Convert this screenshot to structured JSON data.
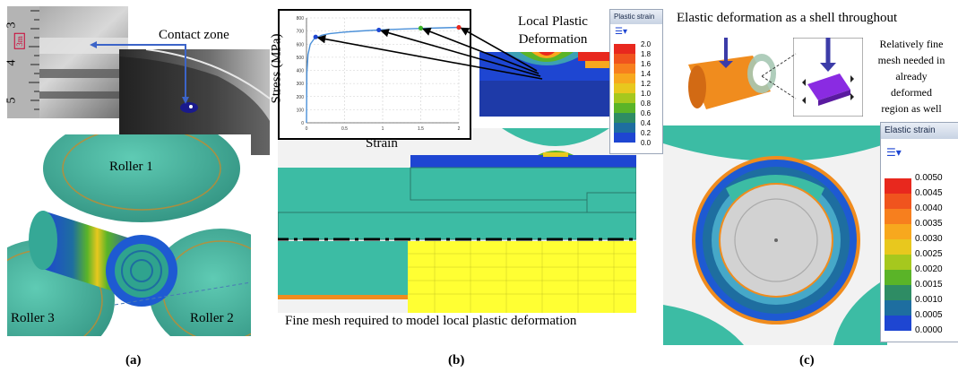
{
  "panel_a": {
    "contact_zone_label": "Contact zone",
    "roller1_label": "Roller 1",
    "roller2_label": "Roller 2",
    "roller3_label": "Roller 3",
    "ruler_marks": [
      "3",
      "4",
      "5"
    ],
    "ruler_badge": "3m",
    "caption": "(a)"
  },
  "panel_b": {
    "local_plastic_title": "Local Plastic Deformation",
    "fine_mesh_caption": "Fine mesh required to model local plastic deformation",
    "caption": "(b)",
    "legend": {
      "title": "Plastic strain",
      "ticks": [
        "2.0",
        "1.8",
        "1.6",
        "1.4",
        "1.2",
        "1.0",
        "0.8",
        "0.6",
        "0.4",
        "0.2",
        "0.0"
      ],
      "colors": [
        "#e8281e",
        "#f0541e",
        "#f77f1e",
        "#f7a81e",
        "#e8c81e",
        "#a6c81e",
        "#5ab428",
        "#2e8c64",
        "#1e6ea0",
        "#1e46d2"
      ]
    }
  },
  "panel_c": {
    "elastic_title": "Elastic deformation as a shell throughout",
    "fine_mesh_note": [
      "Relatively fine",
      "mesh needed in",
      "already",
      "deformed",
      "region as well"
    ],
    "caption": "(c)",
    "legend": {
      "title": "Elastic strain",
      "ticks": [
        "0.0050",
        "0.0045",
        "0.0040",
        "0.0035",
        "0.0030",
        "0.0025",
        "0.0020",
        "0.0015",
        "0.0010",
        "0.0005",
        "0.0000"
      ],
      "colors": [
        "#e8281e",
        "#f0541e",
        "#f77f1e",
        "#f7a81e",
        "#e8c81e",
        "#a6c81e",
        "#5ab428",
        "#2e8c64",
        "#1e6ea0",
        "#1e46d2"
      ]
    }
  },
  "chart_data": {
    "type": "line",
    "xlabel": "Strain",
    "ylabel": "Stress (MPa)",
    "xlim": [
      0,
      2
    ],
    "ylim": [
      0,
      800
    ],
    "xticks": [
      "0",
      "0.5",
      "1",
      "1.5",
      "2"
    ],
    "yticks": [
      "0",
      "100",
      "200",
      "300",
      "400",
      "500",
      "600",
      "700",
      "800"
    ],
    "grid": true,
    "series": [
      {
        "x": [
          0,
          0.005,
          0.02,
          0.05,
          0.1,
          0.2,
          0.3,
          0.5,
          0.7,
          1.0,
          1.25,
          1.5,
          1.75,
          2.0
        ],
        "y": [
          0,
          380,
          520,
          600,
          640,
          668,
          680,
          692,
          700,
          710,
          715,
          720,
          724,
          728
        ]
      }
    ],
    "markers": [
      {
        "x": 0.12,
        "y": 655,
        "color": "#1e46d2"
      },
      {
        "x": 0.95,
        "y": 708,
        "color": "#1e46d2"
      },
      {
        "x": 1.5,
        "y": 722,
        "color": "#3cb428"
      },
      {
        "x": 2.0,
        "y": 728,
        "color": "#e8281e"
      }
    ]
  }
}
